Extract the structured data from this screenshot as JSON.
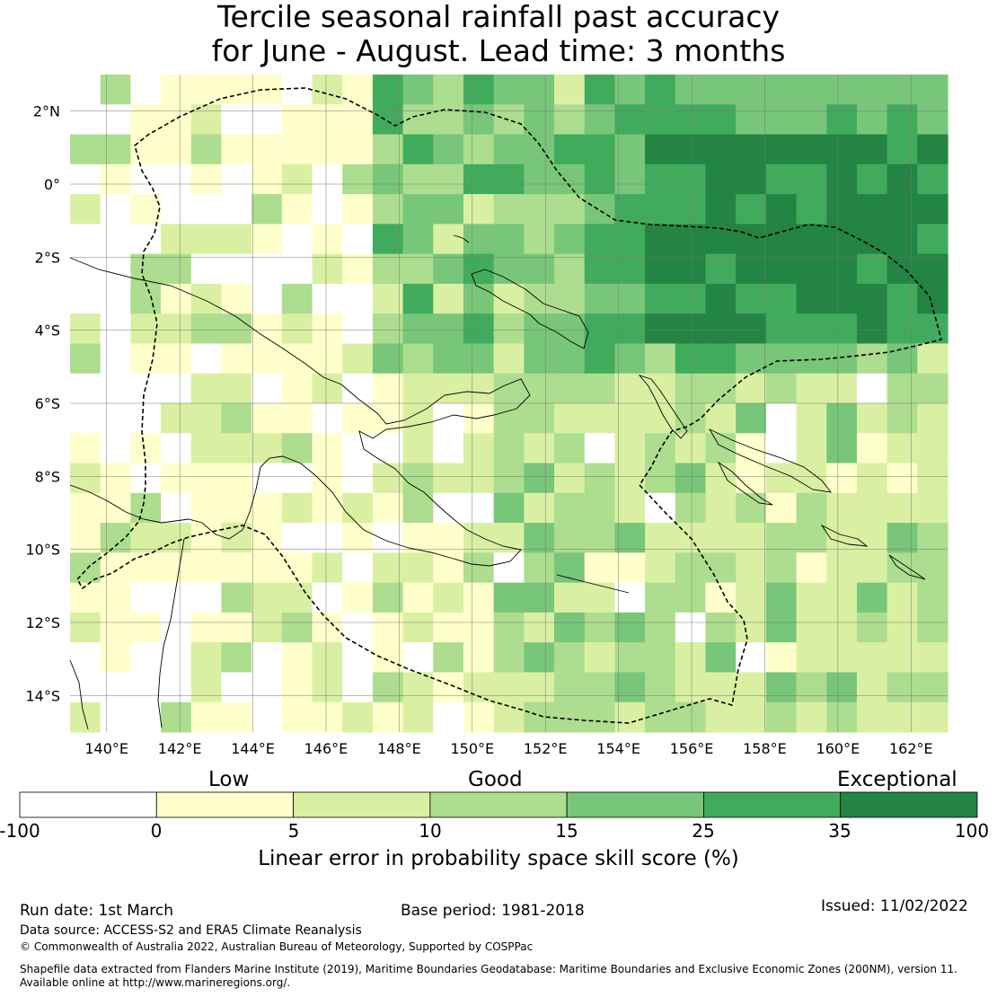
{
  "title": {
    "line1": "Tercile seasonal rainfall past accuracy",
    "line2": "for June - August. Lead time: 3 months"
  },
  "map": {
    "lat_labels": [
      "2°N",
      "0°",
      "2°S",
      "4°S",
      "6°S",
      "8°S",
      "10°S",
      "12°S",
      "14°S"
    ],
    "lon_labels": [
      "140°E",
      "142°E",
      "144°E",
      "146°E",
      "148°E",
      "150°E",
      "152°E",
      "154°E",
      "156°E",
      "158°E",
      "160°E",
      "162°E"
    ],
    "lon_range": [
      139.0,
      163.0
    ],
    "lat_range": [
      -15.0,
      3.0
    ]
  },
  "legend": {
    "categories": [
      "Low",
      "Good",
      "Exceptional"
    ],
    "ticks": [
      "-100",
      "0",
      "5",
      "10",
      "15",
      "25",
      "35",
      "100"
    ],
    "colors": [
      "#ffffff",
      "#ffffcc",
      "#d9f0a3",
      "#addd8e",
      "#78c679",
      "#41ab5d",
      "#238443"
    ],
    "label": "Linear error in probability space skill score (%)"
  },
  "footer": {
    "run_date": "Run date: 1st March",
    "base_period": "Base period: 1981-2018",
    "issued": "Issued: 11/02/2022",
    "data_source": "Data source: ACCESS-S2 and ERA5 Climate Reanalysis",
    "copyright": "© Commonwealth of Australia 2022, Australian Bureau of Meteorology, Supported by COSPPac",
    "shapefile": "Shapefile data extracted from Flanders Marine Institute (2019), Maritime Boundaries Geodatabase: Maritime Boundaries and Exclusive Economic Zones (200NM), version 11.",
    "available": "Available online at http://www.marineregions.org/."
  }
}
